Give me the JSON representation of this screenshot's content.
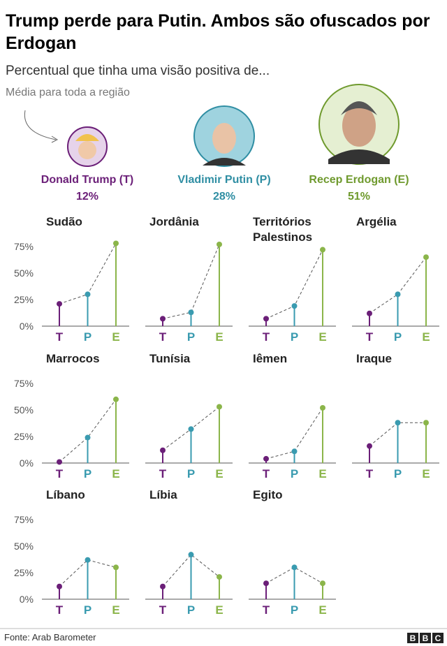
{
  "title": "Trump perde para Putin. Ambos são ofuscados por Erdogan",
  "subtitle": "Percentual que tinha uma visão positiva de...",
  "annotation": "Média para toda a região",
  "leaders": [
    {
      "name": "Donald Trump (T)",
      "value": 12,
      "value_label": "12%",
      "color": "#6b1f78"
    },
    {
      "name": "Vladimir Putin (P)",
      "value": 28,
      "value_label": "28%",
      "color": "#2f8ea3"
    },
    {
      "name": "Recep Erdogan (E)",
      "value": 51,
      "value_label": "51%",
      "color": "#6f9a2e"
    }
  ],
  "chart_data": [
    {
      "type": "lollipop",
      "title": "Sudão",
      "categories": [
        "T",
        "P",
        "E"
      ],
      "values": [
        21,
        30,
        78
      ],
      "colors": [
        "#6b1f78",
        "#3a9bb0",
        "#8bb54a"
      ],
      "ylim": [
        0,
        80
      ],
      "yticks": [
        {
          "value": 0,
          "label": "0%"
        },
        {
          "value": 25,
          "label": "25%"
        },
        {
          "value": 50,
          "label": "50%"
        },
        {
          "value": 75,
          "label": "75%"
        }
      ]
    },
    {
      "type": "lollipop",
      "title": "Jordânia",
      "categories": [
        "T",
        "P",
        "E"
      ],
      "values": [
        7,
        13,
        77
      ],
      "colors": [
        "#6b1f78",
        "#3a9bb0",
        "#8bb54a"
      ],
      "ylim": [
        0,
        80
      ]
    },
    {
      "type": "lollipop",
      "title": "Territórios Palestinos",
      "categories": [
        "T",
        "P",
        "E"
      ],
      "values": [
        7,
        19,
        72
      ],
      "colors": [
        "#6b1f78",
        "#3a9bb0",
        "#8bb54a"
      ],
      "ylim": [
        0,
        80
      ]
    },
    {
      "type": "lollipop",
      "title": "Argélia",
      "categories": [
        "T",
        "P",
        "E"
      ],
      "values": [
        12,
        30,
        65
      ],
      "colors": [
        "#6b1f78",
        "#3a9bb0",
        "#8bb54a"
      ],
      "ylim": [
        0,
        80
      ]
    },
    {
      "type": "lollipop",
      "title": "Marrocos",
      "categories": [
        "T",
        "P",
        "E"
      ],
      "values": [
        1,
        24,
        60
      ],
      "colors": [
        "#6b1f78",
        "#3a9bb0",
        "#8bb54a"
      ],
      "ylim": [
        0,
        80
      ],
      "yticks": [
        {
          "value": 0,
          "label": "0%"
        },
        {
          "value": 25,
          "label": "25%"
        },
        {
          "value": 50,
          "label": "50%"
        },
        {
          "value": 75,
          "label": "75%"
        }
      ]
    },
    {
      "type": "lollipop",
      "title": "Tunísia",
      "categories": [
        "T",
        "P",
        "E"
      ],
      "values": [
        12,
        32,
        53
      ],
      "colors": [
        "#6b1f78",
        "#3a9bb0",
        "#8bb54a"
      ],
      "ylim": [
        0,
        80
      ]
    },
    {
      "type": "lollipop",
      "title": "Iêmen",
      "categories": [
        "T",
        "P",
        "E"
      ],
      "values": [
        4,
        11,
        52
      ],
      "colors": [
        "#6b1f78",
        "#3a9bb0",
        "#8bb54a"
      ],
      "ylim": [
        0,
        80
      ]
    },
    {
      "type": "lollipop",
      "title": "Iraque",
      "categories": [
        "T",
        "P",
        "E"
      ],
      "values": [
        16,
        38,
        38
      ],
      "colors": [
        "#6b1f78",
        "#3a9bb0",
        "#8bb54a"
      ],
      "ylim": [
        0,
        80
      ]
    },
    {
      "type": "lollipop",
      "title": "Líbano",
      "categories": [
        "T",
        "P",
        "E"
      ],
      "values": [
        12,
        37,
        30
      ],
      "colors": [
        "#6b1f78",
        "#3a9bb0",
        "#8bb54a"
      ],
      "ylim": [
        0,
        80
      ],
      "yticks": [
        {
          "value": 0,
          "label": "0%"
        },
        {
          "value": 25,
          "label": "25%"
        },
        {
          "value": 50,
          "label": "50%"
        },
        {
          "value": 75,
          "label": "75%"
        }
      ]
    },
    {
      "type": "lollipop",
      "title": "Líbia",
      "categories": [
        "T",
        "P",
        "E"
      ],
      "values": [
        12,
        42,
        21
      ],
      "colors": [
        "#6b1f78",
        "#3a9bb0",
        "#8bb54a"
      ],
      "ylim": [
        0,
        80
      ]
    },
    {
      "type": "lollipop",
      "title": "Egito",
      "categories": [
        "T",
        "P",
        "E"
      ],
      "values": [
        15,
        30,
        15
      ],
      "colors": [
        "#6b1f78",
        "#3a9bb0",
        "#8bb54a"
      ],
      "ylim": [
        0,
        80
      ]
    }
  ],
  "source": "Fonte: Arab Barometer",
  "logo": [
    "B",
    "B",
    "C"
  ]
}
